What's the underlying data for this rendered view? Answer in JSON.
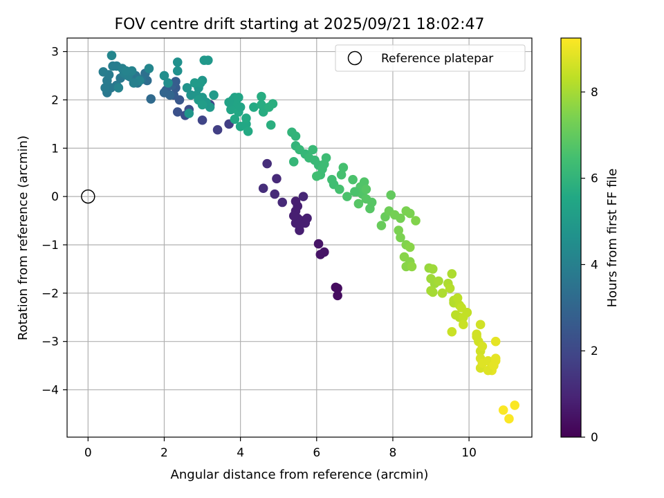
{
  "chart_data": {
    "type": "scatter",
    "title": "FOV centre drift starting at 2025/09/21 18:02:47",
    "xlabel": "Angular distance from reference (arcmin)",
    "ylabel": "Rotation from reference (arcmin)",
    "xlim": [
      -0.55,
      11.65
    ],
    "ylim": [
      -4.98,
      3.28
    ],
    "xticks": [
      0,
      2,
      4,
      6,
      8,
      10
    ],
    "yticks": [
      3,
      2,
      1,
      0,
      -1,
      -2,
      -3,
      -4
    ],
    "grid": true,
    "legend": {
      "label": "Reference platepar",
      "position": "top-right",
      "marker": "open-circle"
    },
    "reference_point": {
      "x": 0,
      "y": 0
    },
    "colorbar": {
      "label": "Hours from first FF file",
      "colormap": "viridis",
      "range": [
        0,
        9.25
      ],
      "ticks": [
        0,
        2,
        4,
        6,
        8
      ]
    },
    "points": [
      [
        6.55,
        -1.9,
        0.3
      ],
      [
        6.55,
        -2.05,
        0.3
      ],
      [
        6.5,
        -1.88,
        0.3
      ],
      [
        6.05,
        -0.98,
        0.5
      ],
      [
        6.1,
        -1.2,
        0.5
      ],
      [
        6.2,
        -1.15,
        0.5
      ],
      [
        5.45,
        -0.3,
        0.8
      ],
      [
        5.5,
        -0.45,
        0.8
      ],
      [
        5.45,
        -0.55,
        0.8
      ],
      [
        5.55,
        -0.7,
        0.8
      ],
      [
        5.6,
        -0.5,
        0.8
      ],
      [
        5.7,
        -0.55,
        0.8
      ],
      [
        5.75,
        -0.45,
        0.8
      ],
      [
        5.5,
        -0.2,
        0.8
      ],
      [
        5.45,
        -0.1,
        0.8
      ],
      [
        5.4,
        -0.4,
        0.8
      ],
      [
        5.55,
        -0.6,
        0.8
      ],
      [
        5.65,
        0.0,
        1.0
      ],
      [
        5.1,
        -0.12,
        1.1
      ],
      [
        4.9,
        0.05,
        1.1
      ],
      [
        4.95,
        0.37,
        1.1
      ],
      [
        4.6,
        0.17,
        1.2
      ],
      [
        4.7,
        0.68,
        1.2
      ],
      [
        3.7,
        1.5,
        1.7
      ],
      [
        3.4,
        1.38,
        1.7
      ],
      [
        3.2,
        1.9,
        1.9
      ],
      [
        3.0,
        1.58,
        1.9
      ],
      [
        2.55,
        1.68,
        2.2
      ],
      [
        2.65,
        1.8,
        2.2
      ],
      [
        2.35,
        1.75,
        2.3
      ],
      [
        2.4,
        2.0,
        2.5
      ],
      [
        2.25,
        2.1,
        2.6
      ],
      [
        2.3,
        2.25,
        2.6
      ],
      [
        2.05,
        2.2,
        2.7
      ],
      [
        2.2,
        2.3,
        2.9
      ],
      [
        2.3,
        2.38,
        2.7
      ],
      [
        2.15,
        2.1,
        3.0
      ],
      [
        2.0,
        2.15,
        3.0
      ],
      [
        1.65,
        2.02,
        3.2
      ],
      [
        1.55,
        2.4,
        3.3
      ],
      [
        1.5,
        2.55,
        3.4
      ],
      [
        1.3,
        2.35,
        3.5
      ],
      [
        1.4,
        2.42,
        3.5
      ],
      [
        1.25,
        2.5,
        3.6
      ],
      [
        1.1,
        2.48,
        3.6
      ],
      [
        0.95,
        2.55,
        3.7
      ],
      [
        0.85,
        2.45,
        3.7
      ],
      [
        0.75,
        2.3,
        3.7
      ],
      [
        0.6,
        2.25,
        3.7
      ],
      [
        0.5,
        2.15,
        3.7
      ],
      [
        0.45,
        2.25,
        3.8
      ],
      [
        0.5,
        2.4,
        3.8
      ],
      [
        0.55,
        2.52,
        3.8
      ],
      [
        0.4,
        2.58,
        3.9
      ],
      [
        0.65,
        2.7,
        3.9
      ],
      [
        0.75,
        2.7,
        3.9
      ],
      [
        0.9,
        2.65,
        4.0
      ],
      [
        0.95,
        2.55,
        4.0
      ],
      [
        1.05,
        2.5,
        4.0
      ],
      [
        1.15,
        2.6,
        4.1
      ],
      [
        1.35,
        2.4,
        4.1
      ],
      [
        1.6,
        2.65,
        4.2
      ],
      [
        0.62,
        2.92,
        4.2
      ],
      [
        0.8,
        2.25,
        4.1
      ],
      [
        1.0,
        2.6,
        4.1
      ],
      [
        1.2,
        2.35,
        4.0
      ],
      [
        2.0,
        2.5,
        4.5
      ],
      [
        2.1,
        2.35,
        4.5
      ],
      [
        2.35,
        2.78,
        4.6
      ],
      [
        2.35,
        2.6,
        4.6
      ],
      [
        2.6,
        2.25,
        4.7
      ],
      [
        2.7,
        2.1,
        4.7
      ],
      [
        2.65,
        1.72,
        4.8
      ],
      [
        2.85,
        2.1,
        4.8
      ],
      [
        2.9,
        2.25,
        4.8
      ],
      [
        3.0,
        2.4,
        4.8
      ],
      [
        3.05,
        2.82,
        4.9
      ],
      [
        3.15,
        2.82,
        4.9
      ],
      [
        3.0,
        2.05,
        4.9
      ],
      [
        3.1,
        1.95,
        4.9
      ],
      [
        3.2,
        1.85,
        4.9
      ],
      [
        3.3,
        2.1,
        5.0
      ],
      [
        2.9,
        2.0,
        5.0
      ],
      [
        3.0,
        1.9,
        5.1
      ],
      [
        2.8,
        2.35,
        5.0
      ],
      [
        2.95,
        2.35,
        5.0
      ],
      [
        3.8,
        2.0,
        5.3
      ],
      [
        3.85,
        2.05,
        5.3
      ],
      [
        3.95,
        2.05,
        5.4
      ],
      [
        3.9,
        1.9,
        5.4
      ],
      [
        3.75,
        1.8,
        5.4
      ],
      [
        3.85,
        1.6,
        5.5
      ],
      [
        3.95,
        1.75,
        5.5
      ],
      [
        4.0,
        1.45,
        5.5
      ],
      [
        4.15,
        1.5,
        5.5
      ],
      [
        4.2,
        1.35,
        5.6
      ],
      [
        4.15,
        1.62,
        5.6
      ],
      [
        4.35,
        1.85,
        5.6
      ],
      [
        4.55,
        1.9,
        5.7
      ],
      [
        4.55,
        2.07,
        5.7
      ],
      [
        4.6,
        1.75,
        5.7
      ],
      [
        4.75,
        1.85,
        5.8
      ],
      [
        4.8,
        1.48,
        5.8
      ],
      [
        4.85,
        1.92,
        5.8
      ],
      [
        3.7,
        1.95,
        5.3
      ],
      [
        4.0,
        1.85,
        5.4
      ],
      [
        5.35,
        1.33,
        6.0
      ],
      [
        5.45,
        1.25,
        6.0
      ],
      [
        5.45,
        1.05,
        6.0
      ],
      [
        5.4,
        0.72,
        6.1
      ],
      [
        5.55,
        0.97,
        6.1
      ],
      [
        5.7,
        0.88,
        6.1
      ],
      [
        5.8,
        0.8,
        6.2
      ],
      [
        5.9,
        0.97,
        6.2
      ],
      [
        5.95,
        0.75,
        6.2
      ],
      [
        6.05,
        0.65,
        6.2
      ],
      [
        6.15,
        0.57,
        6.3
      ],
      [
        6.2,
        0.67,
        6.3
      ],
      [
        6.25,
        0.8,
        6.3
      ],
      [
        6.1,
        0.45,
        6.3
      ],
      [
        6.0,
        0.42,
        6.4
      ],
      [
        6.4,
        0.35,
        6.4
      ],
      [
        6.45,
        0.25,
        6.4
      ],
      [
        6.6,
        0.15,
        6.5
      ],
      [
        6.65,
        0.45,
        6.5
      ],
      [
        6.7,
        0.6,
        6.5
      ],
      [
        6.8,
        0.0,
        6.6
      ],
      [
        6.95,
        0.35,
        6.6
      ],
      [
        7.05,
        0.1,
        6.7
      ],
      [
        7.15,
        0.2,
        6.7
      ],
      [
        7.2,
        0.05,
        6.7
      ],
      [
        7.3,
        -0.05,
        6.8
      ],
      [
        7.4,
        -0.25,
        6.8
      ],
      [
        7.45,
        -0.12,
        6.8
      ],
      [
        7.1,
        -0.15,
        6.8
      ],
      [
        7.25,
        0.3,
        6.7
      ],
      [
        7.3,
        0.15,
        6.8
      ],
      [
        7.0,
        0.1,
        6.6
      ],
      [
        7.95,
        0.03,
        7.0
      ],
      [
        7.8,
        -0.42,
        7.1
      ],
      [
        7.7,
        -0.6,
        7.1
      ],
      [
        7.9,
        -0.3,
        7.2
      ],
      [
        8.05,
        -0.38,
        7.3
      ],
      [
        8.2,
        -0.45,
        7.3
      ],
      [
        8.15,
        -0.7,
        7.4
      ],
      [
        8.2,
        -0.85,
        7.4
      ],
      [
        8.35,
        -0.3,
        7.4
      ],
      [
        8.45,
        -0.35,
        7.4
      ],
      [
        8.6,
        -0.5,
        7.5
      ],
      [
        8.35,
        -1.0,
        7.5
      ],
      [
        8.45,
        -1.05,
        7.6
      ],
      [
        8.3,
        -1.25,
        7.6
      ],
      [
        8.35,
        -1.45,
        7.6
      ],
      [
        8.45,
        -1.35,
        7.6
      ],
      [
        8.5,
        -1.45,
        7.7
      ],
      [
        8.95,
        -1.48,
        7.8
      ],
      [
        9.05,
        -1.5,
        7.9
      ],
      [
        9.0,
        -1.7,
        7.9
      ],
      [
        9.1,
        -1.8,
        7.9
      ],
      [
        9.0,
        -1.95,
        8.0
      ],
      [
        9.05,
        -1.98,
        8.0
      ],
      [
        9.2,
        -1.75,
        8.0
      ],
      [
        9.3,
        -2.0,
        8.1
      ],
      [
        9.45,
        -1.8,
        8.1
      ],
      [
        9.55,
        -1.6,
        8.1
      ],
      [
        9.5,
        -1.9,
        8.2
      ],
      [
        9.6,
        -2.15,
        8.2
      ],
      [
        9.6,
        -2.2,
        8.2
      ],
      [
        9.7,
        -2.1,
        8.3
      ],
      [
        9.75,
        -2.25,
        8.3
      ],
      [
        9.65,
        -2.45,
        8.3
      ],
      [
        9.75,
        -2.5,
        8.3
      ],
      [
        9.8,
        -2.3,
        8.4
      ],
      [
        9.85,
        -2.5,
        8.4
      ],
      [
        9.95,
        -2.4,
        8.4
      ],
      [
        9.85,
        -2.65,
        8.5
      ],
      [
        9.55,
        -2.8,
        8.5
      ],
      [
        10.2,
        -2.9,
        8.6
      ],
      [
        10.25,
        -3.0,
        8.6
      ],
      [
        10.3,
        -3.2,
        8.6
      ],
      [
        10.3,
        -3.35,
        8.7
      ],
      [
        10.3,
        -3.55,
        8.7
      ],
      [
        10.35,
        -3.45,
        8.8
      ],
      [
        10.5,
        -3.4,
        8.8
      ],
      [
        10.6,
        -3.5,
        8.8
      ],
      [
        10.6,
        -3.6,
        8.9
      ],
      [
        10.7,
        -3.35,
        8.9
      ],
      [
        10.7,
        -3.4,
        8.9
      ],
      [
        10.7,
        -3.0,
        8.9
      ],
      [
        10.35,
        -3.1,
        8.7
      ],
      [
        10.2,
        -2.85,
        8.6
      ],
      [
        10.3,
        -2.65,
        8.6
      ],
      [
        10.5,
        -3.6,
        8.8
      ],
      [
        10.65,
        -3.5,
        8.9
      ],
      [
        10.9,
        -4.42,
        9.2
      ],
      [
        11.05,
        -4.6,
        9.2
      ],
      [
        11.2,
        -4.32,
        9.2
      ]
    ]
  }
}
